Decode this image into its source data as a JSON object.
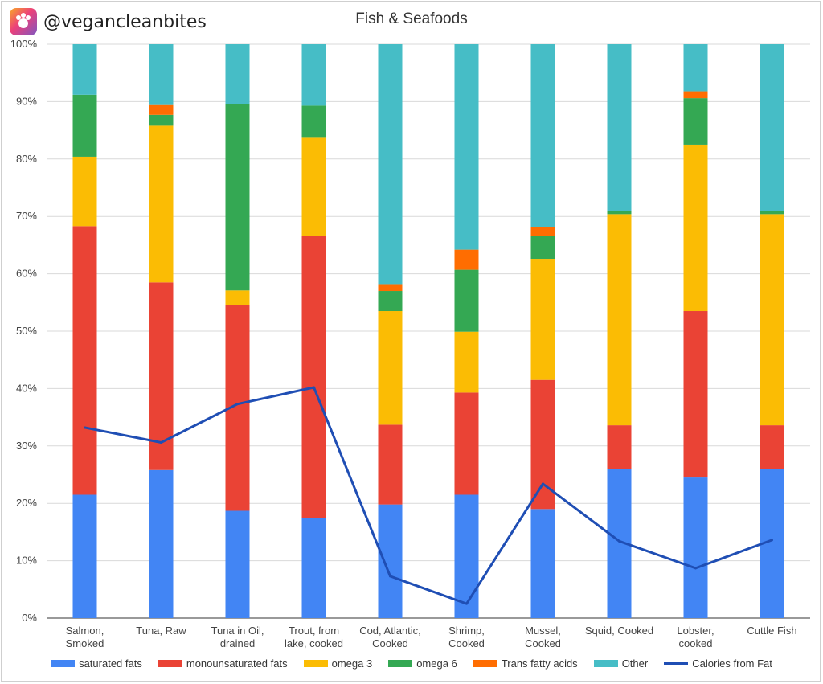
{
  "brand": {
    "handle": "@vegancleanbites",
    "logo_icon": "vegan-logo-icon"
  },
  "chart_data": {
    "type": "bar",
    "stacked": true,
    "title": "Fish & Seafoods",
    "categories": [
      [
        "Salmon,",
        "Smoked"
      ],
      [
        "Tuna, Raw"
      ],
      [
        "Tuna in Oil,",
        "drained"
      ],
      [
        "Trout, from",
        "lake, cooked"
      ],
      [
        "Cod, Atlantic,",
        "Cooked"
      ],
      [
        "Shrimp,",
        "Cooked"
      ],
      [
        "Mussel,",
        "Cooked"
      ],
      [
        "Squid, Cooked"
      ],
      [
        "Lobster,",
        "cooked"
      ],
      [
        "Cuttle Fish"
      ]
    ],
    "ylim": [
      0,
      100
    ],
    "yticks": [
      "0%",
      "10%",
      "20%",
      "30%",
      "40%",
      "50%",
      "60%",
      "70%",
      "80%",
      "90%",
      "100%"
    ],
    "grid": true,
    "legend_position": "bottom",
    "series": [
      {
        "name": "saturated fats",
        "color": "#4285f4",
        "values": [
          21.5,
          25.8,
          18.7,
          17.4,
          19.8,
          21.5,
          19.0,
          26.0,
          24.5,
          26.0
        ]
      },
      {
        "name": "monounsaturated fats",
        "color": "#ea4335",
        "values": [
          46.8,
          32.7,
          35.9,
          49.2,
          13.9,
          17.8,
          22.5,
          7.6,
          29.0,
          7.6
        ]
      },
      {
        "name": "omega 3",
        "color": "#fbbc04",
        "values": [
          12.1,
          27.3,
          2.5,
          17.1,
          19.8,
          10.6,
          21.1,
          36.8,
          29.0,
          36.8
        ]
      },
      {
        "name": "omega 6",
        "color": "#34a853",
        "values": [
          10.8,
          1.9,
          32.5,
          5.6,
          3.5,
          10.8,
          4.0,
          0.6,
          8.1,
          0.6
        ]
      },
      {
        "name": "Trans fatty acids",
        "color": "#ff6d01",
        "values": [
          0,
          1.7,
          0,
          0,
          1.2,
          3.5,
          1.6,
          0,
          1.2,
          0
        ]
      },
      {
        "name": "Other",
        "color": "#46bdc6",
        "values": [
          8.8,
          10.6,
          10.4,
          10.7,
          41.8,
          35.8,
          31.8,
          29.0,
          8.2,
          29.0
        ]
      }
    ],
    "line_series": {
      "name": "Calories from Fat",
      "color": "#1f4eb4",
      "values": [
        33.2,
        30.6,
        37.3,
        40.2,
        7.3,
        2.5,
        23.4,
        13.4,
        8.7,
        13.6
      ]
    }
  }
}
